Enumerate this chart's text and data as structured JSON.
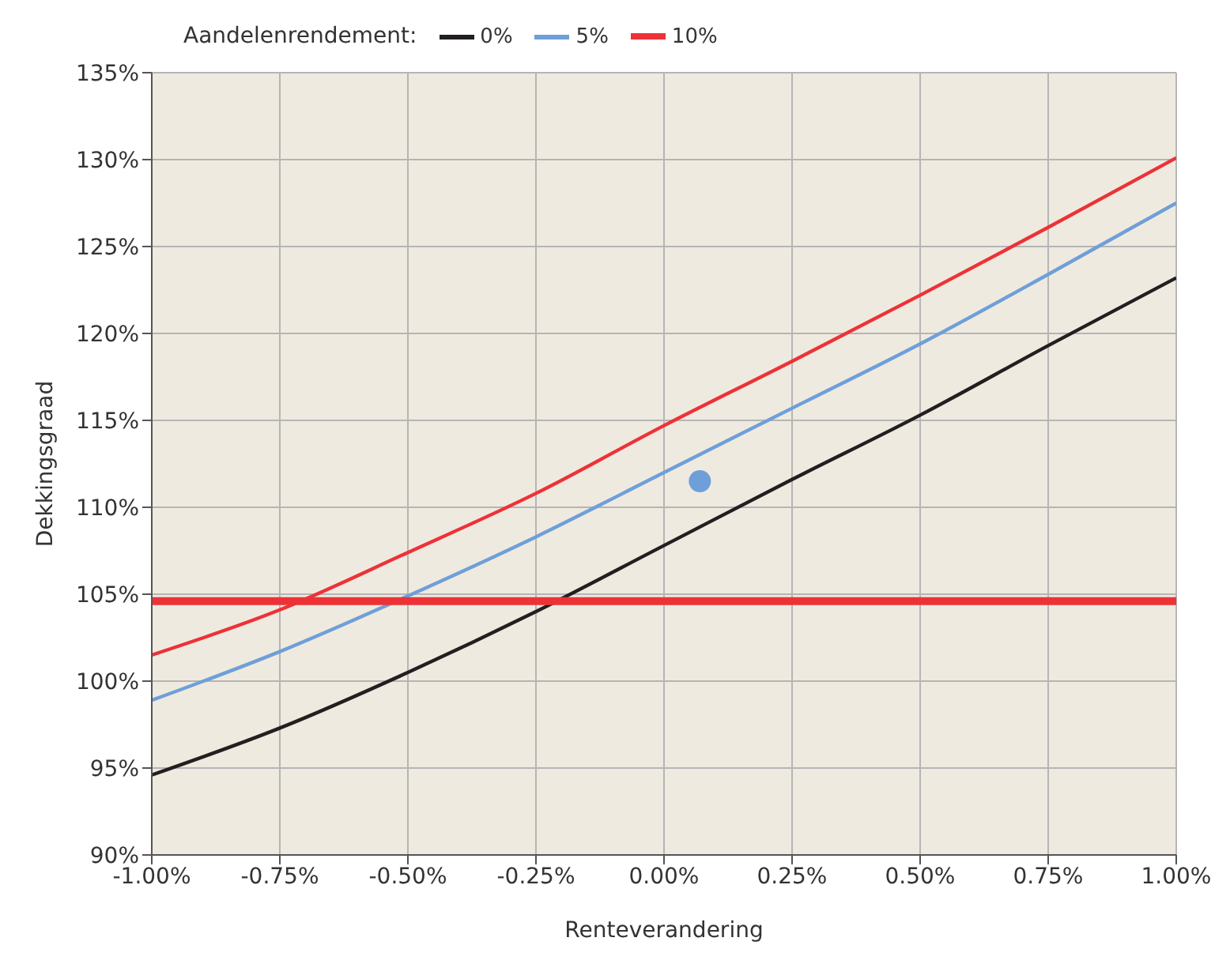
{
  "chart_data": {
    "type": "line",
    "xlabel": "Renteverandering",
    "ylabel": "Dekkingsgraad",
    "legend_title": "Aandelenrendement:",
    "legend": "top",
    "grid": true,
    "line_style": "solid",
    "x": [
      -1,
      -0.75,
      -0.5,
      -0.25,
      0,
      0.25,
      0.5,
      0.75,
      1
    ],
    "series": [
      {
        "name": "0%",
        "color": "#231f20",
        "values": [
          94.6,
          97.3,
          100.5,
          104,
          107.8,
          111.6,
          115.3,
          119.3,
          123.2
        ]
      },
      {
        "name": "5%",
        "color": "#6f9fd8",
        "values": [
          98.9,
          101.7,
          104.9,
          108.3,
          112,
          115.7,
          119.4,
          123.4,
          127.5
        ]
      },
      {
        "name": "10%",
        "color": "#ed3237",
        "values": [
          101.5,
          104.1,
          107.4,
          110.8,
          114.7,
          118.4,
          122.2,
          126.1,
          130.1
        ]
      },
      {
        "type": "scatter",
        "marker": "circle",
        "color": "#6f9fd8",
        "x": [
          0.07
        ],
        "values": [
          111.5
        ]
      }
    ],
    "ref_lines": [
      {
        "axis": "y",
        "value": 104.6,
        "color": "#ed3237"
      }
    ],
    "xlim": [
      -1,
      1
    ],
    "xticks": [
      {
        "value": -1,
        "label": "-1.00%"
      },
      {
        "value": -0.75,
        "label": "-0.75%"
      },
      {
        "value": -0.5,
        "label": "-0.50%"
      },
      {
        "value": -0.25,
        "label": "-0.25%"
      },
      {
        "value": 0,
        "label": "0.00%"
      },
      {
        "value": 0.25,
        "label": "0.25%"
      },
      {
        "value": 0.5,
        "label": "0.50%"
      },
      {
        "value": 0.75,
        "label": "0.75%"
      },
      {
        "value": 1,
        "label": "1.00%"
      }
    ],
    "ylim": [
      90,
      135
    ],
    "yticks": [
      {
        "value": 90,
        "label": "90%"
      },
      {
        "value": 95,
        "label": "95%"
      },
      {
        "value": 100,
        "label": "100%"
      },
      {
        "value": 105,
        "label": "105%"
      },
      {
        "value": 110,
        "label": "110%"
      },
      {
        "value": 115,
        "label": "115%"
      },
      {
        "value": 120,
        "label": "120%"
      },
      {
        "value": 125,
        "label": "125%"
      },
      {
        "value": 130,
        "label": "130%"
      },
      {
        "value": 135,
        "label": "135%"
      }
    ]
  }
}
